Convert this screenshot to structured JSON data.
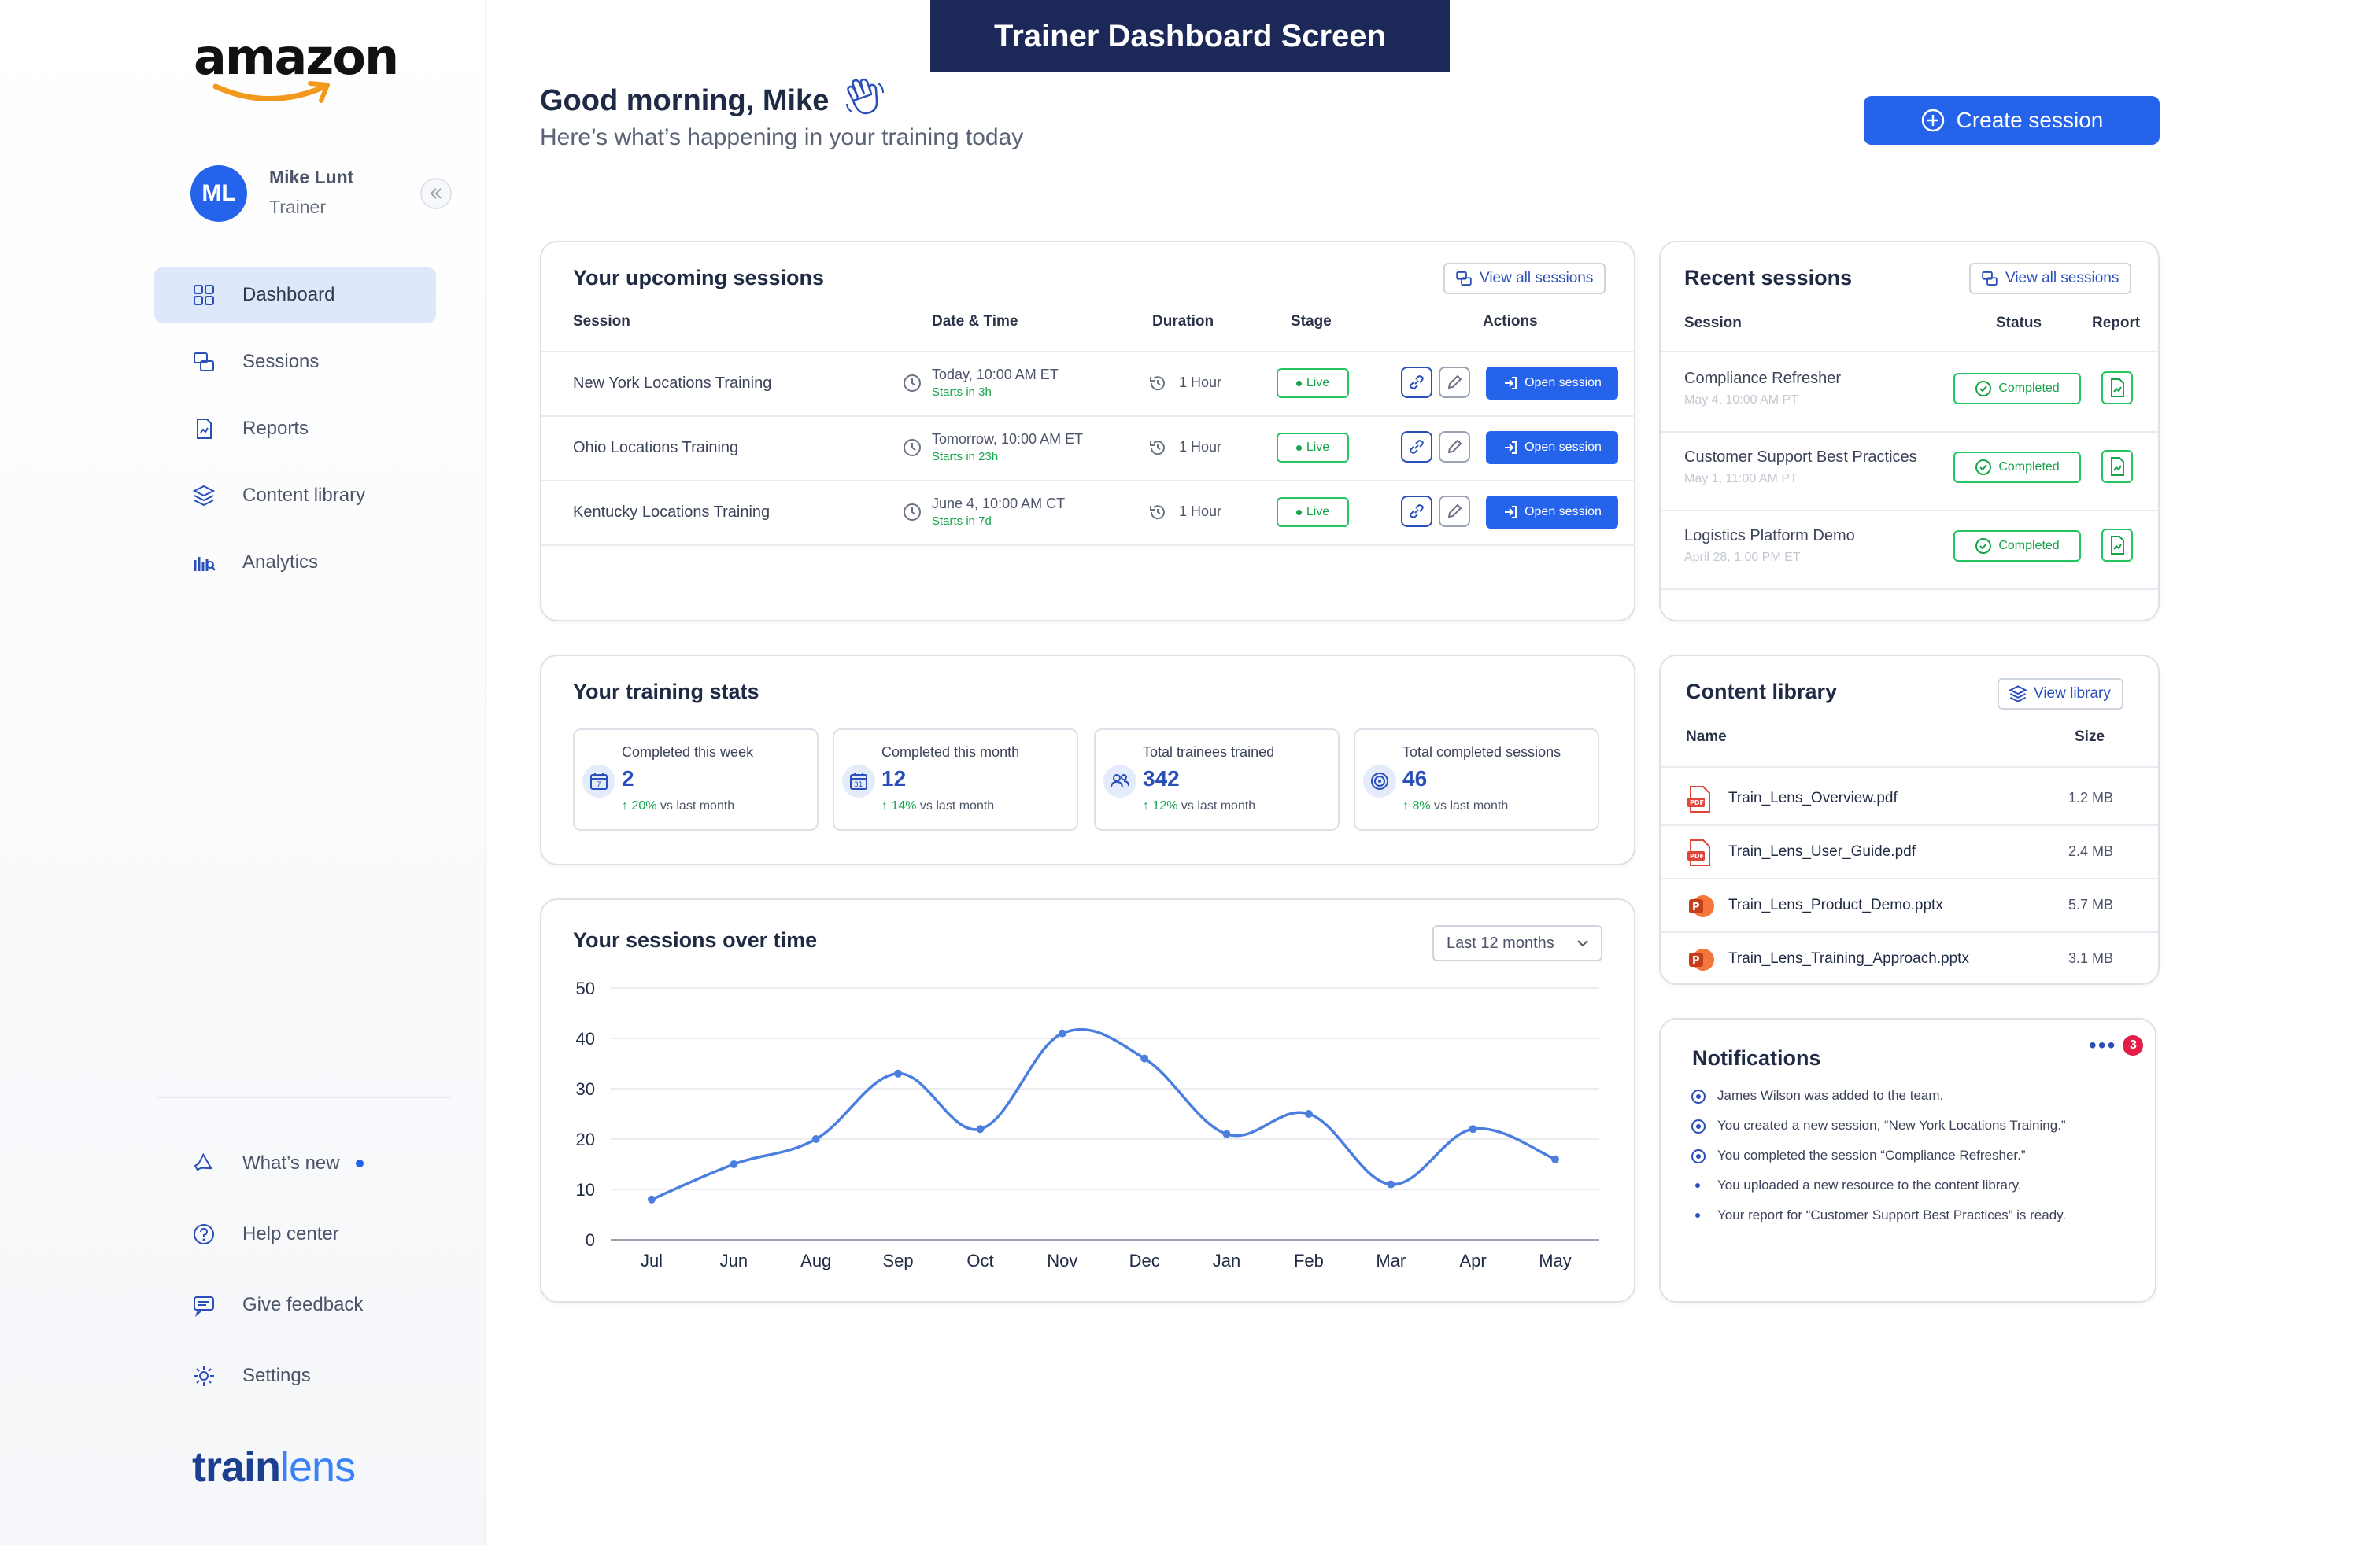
{
  "banner": "Trainer Dashboard Screen",
  "logo": "amazon",
  "user": {
    "initials": "ML",
    "name": "Mike Lunt",
    "role": "Trainer"
  },
  "nav": [
    {
      "label": "Dashboard",
      "icon": "grid-icon",
      "active": true
    },
    {
      "label": "Sessions",
      "icon": "sessions-icon",
      "active": false
    },
    {
      "label": "Reports",
      "icon": "report-icon",
      "active": false
    },
    {
      "label": "Content library",
      "icon": "layers-icon",
      "active": false
    },
    {
      "label": "Analytics",
      "icon": "analytics-icon",
      "active": false
    }
  ],
  "bottom_nav": [
    {
      "label": "What’s new",
      "icon": "megaphone-icon"
    },
    {
      "label": "Help center",
      "icon": "help-icon"
    },
    {
      "label": "Give feedback",
      "icon": "feedback-icon"
    },
    {
      "label": "Settings",
      "icon": "gear-icon"
    }
  ],
  "brand": {
    "part1": "train",
    "part2": "lens"
  },
  "header": {
    "greeting": "Good morning, Mike",
    "subtitle": "Here’s what’s happening in your training today",
    "create_label": "Create session"
  },
  "upcoming": {
    "title": "Your upcoming sessions",
    "view_all": "View all sessions",
    "columns": [
      "Session",
      "Date & Time",
      "Duration",
      "Stage",
      "Actions"
    ],
    "rows": [
      {
        "name": "New York Locations Training",
        "datetime": "Today, 10:00 AM ET",
        "starts": "Starts in 3h",
        "duration": "1 Hour",
        "stage": "Live",
        "action": "Open session"
      },
      {
        "name": "Ohio Locations Training",
        "datetime": "Tomorrow, 10:00 AM ET",
        "starts": "Starts in 23h",
        "duration": "1 Hour",
        "stage": "Live",
        "action": "Open session"
      },
      {
        "name": "Kentucky Locations Training",
        "datetime": "June 4, 10:00 AM CT",
        "starts": "Starts in 7d",
        "duration": "1 Hour",
        "stage": "Live",
        "action": "Open session"
      }
    ]
  },
  "recent": {
    "title": "Recent sessions",
    "view_all": "View all sessions",
    "columns": [
      "Session",
      "Status",
      "Report"
    ],
    "rows": [
      {
        "name": "Compliance Refresher",
        "date": "May 4, 10:00 AM PT",
        "status": "Completed"
      },
      {
        "name": "Customer Support Best Practices",
        "date": "May 1, 11:00 AM PT",
        "status": "Completed"
      },
      {
        "name": "Logistics Platform Demo",
        "date": "April 28, 1:00 PM ET",
        "status": "Completed"
      }
    ]
  },
  "stats": {
    "title": "Your training stats",
    "items": [
      {
        "label": "Completed this week",
        "value": "2",
        "pct": "20%",
        "cmp": " vs last month",
        "icon": "calendar-icon"
      },
      {
        "label": "Completed this month",
        "value": "12",
        "pct": "14%",
        "cmp": " vs last month",
        "icon": "calendar-month-icon"
      },
      {
        "label": "Total trainees trained",
        "value": "342",
        "pct": "12%",
        "cmp": " vs last month",
        "icon": "users-icon"
      },
      {
        "label": "Total completed sessions",
        "value": "46",
        "pct": "8%",
        "cmp": " vs last month",
        "icon": "target-icon"
      }
    ]
  },
  "chart": {
    "title": "Your sessions over time",
    "range": "Last 12 months"
  },
  "chart_data": {
    "type": "line",
    "categories": [
      "Jul",
      "Jun",
      "Aug",
      "Sep",
      "Oct",
      "Nov",
      "Dec",
      "Jan",
      "Feb",
      "Mar",
      "Apr",
      "May"
    ],
    "values": [
      8,
      15,
      20,
      33,
      22,
      41,
      36,
      21,
      25,
      11,
      22,
      16
    ],
    "yticks": [
      0,
      10,
      20,
      30,
      40,
      50
    ],
    "ylim": [
      0,
      50
    ],
    "grid": true,
    "color": "#4a7fe0"
  },
  "library": {
    "title": "Content library",
    "view": "View library",
    "columns": [
      "Name",
      "Size"
    ],
    "rows": [
      {
        "name": "Train_Lens_Overview.pdf",
        "size": "1.2 MB",
        "type": "pdf"
      },
      {
        "name": "Train_Lens_User_Guide.pdf",
        "size": "2.4 MB",
        "type": "pdf"
      },
      {
        "name": "Train_Lens_Product_Demo.pptx",
        "size": "5.7 MB",
        "type": "pptx"
      },
      {
        "name": "Train_Lens_Training_Approach.pptx",
        "size": "3.1 MB",
        "type": "pptx"
      }
    ]
  },
  "notifications": {
    "title": "Notifications",
    "badge": "3",
    "items": [
      {
        "text": "James Wilson was added to the team.",
        "unread": true
      },
      {
        "text": "You created a new session, “New York Locations Training.”",
        "unread": true
      },
      {
        "text": "You completed the session “Compliance Refresher.”",
        "unread": true
      },
      {
        "text": "You uploaded a new resource to the content library.",
        "unread": false
      },
      {
        "text": "Your report for “Customer Support Best Practices” is ready.",
        "unread": false
      }
    ]
  }
}
